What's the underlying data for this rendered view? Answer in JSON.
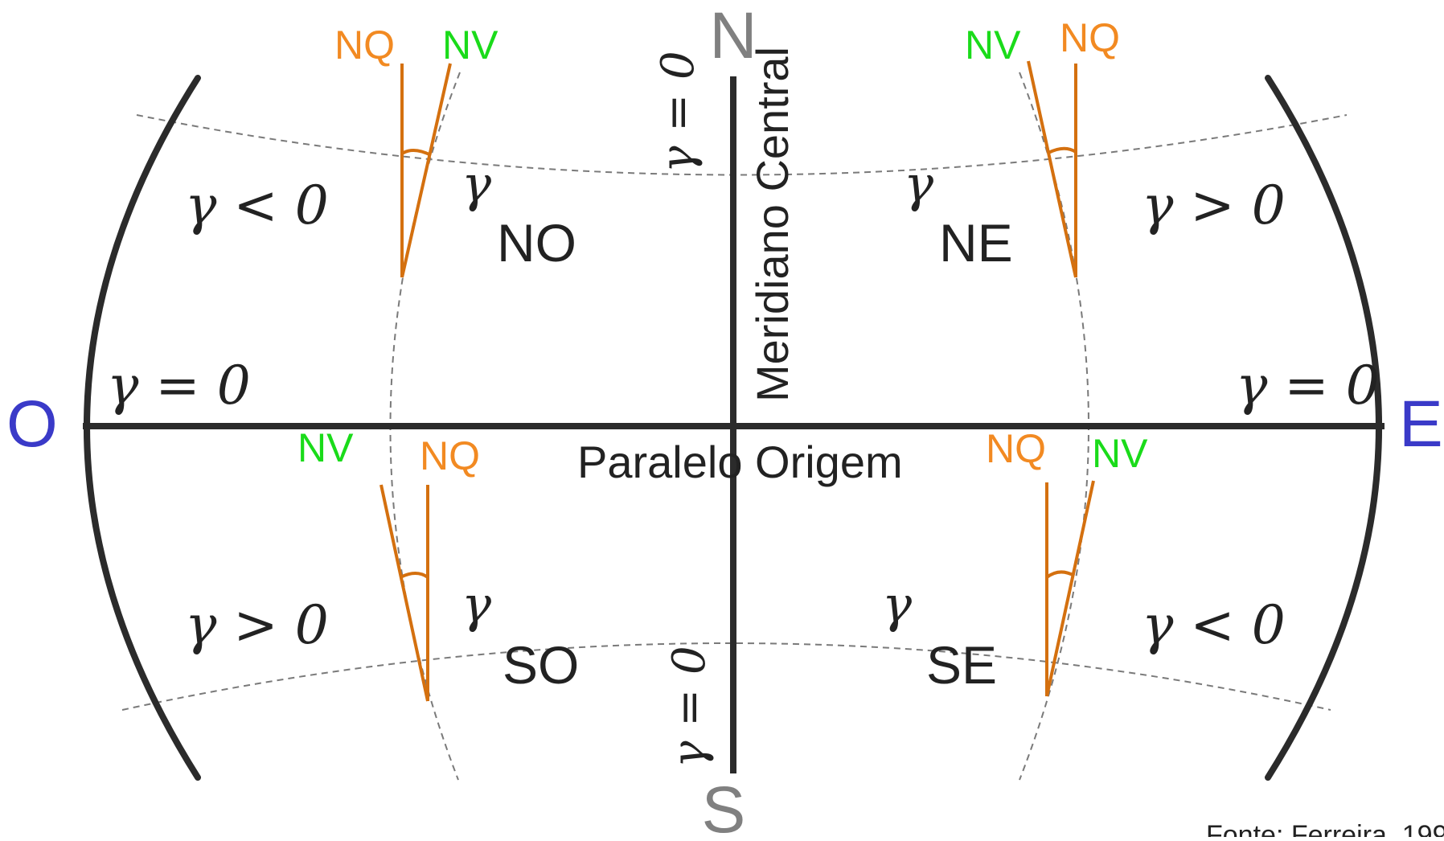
{
  "cardinals": {
    "north": "N",
    "south": "S",
    "west": "O",
    "east": "E"
  },
  "axes": {
    "central_meridian": "Meridiano Central",
    "origin_parallel": "Paralelo Origem"
  },
  "quadrants": {
    "nw": "NO",
    "ne": "NE",
    "sw": "SO",
    "se": "SE"
  },
  "gamma_symbol": "γ",
  "convergence": {
    "nw": "γ < 0",
    "ne": "γ > 0",
    "sw": "γ > 0",
    "se": "γ < 0",
    "west_edge": "γ = 0",
    "east_edge": "γ = 0",
    "meridian_top": "γ = 0",
    "meridian_bottom": "γ = 0"
  },
  "north_labels": {
    "grid": "NQ",
    "true": "NV"
  },
  "source": "Fonte: Ferreira, 199",
  "colors": {
    "frame": "#2b2b2b",
    "grid_north": "#d4700f",
    "nq_text": "#f28a22",
    "nv_text": "#1adb1a",
    "cardinal_ns": "#808080",
    "cardinal_ew": "#3a3ac8",
    "dashed": "#7a7a7a",
    "text": "#222222"
  }
}
